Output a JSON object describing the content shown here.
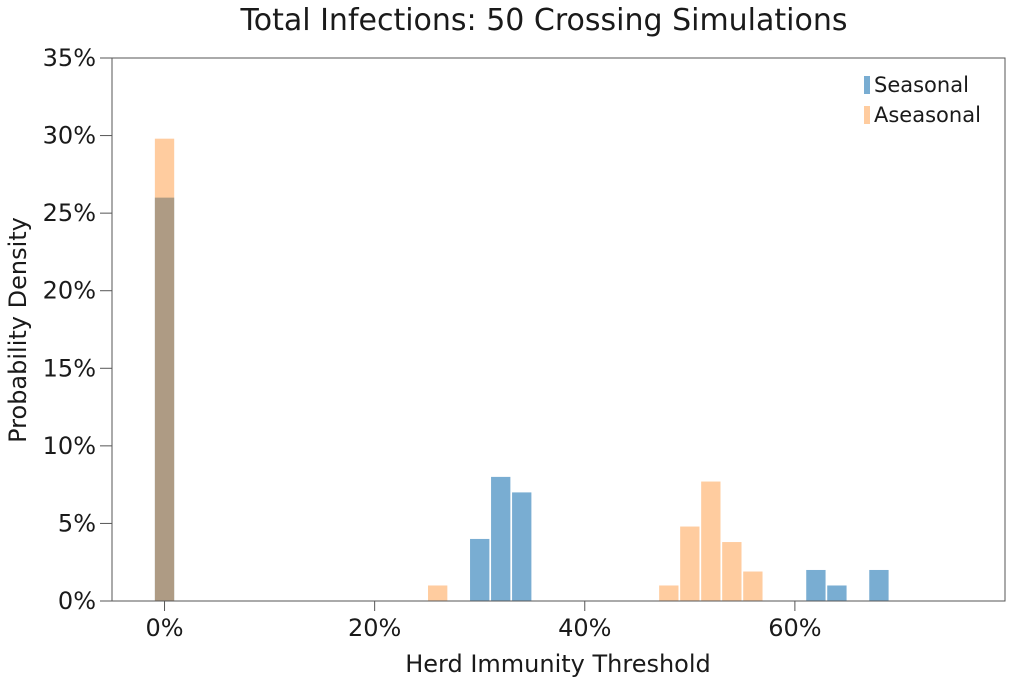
{
  "chart_data": {
    "type": "bar",
    "title": "Total Infections: 50 Crossing Simulations",
    "xlabel": "Herd Immunity Threshold",
    "ylabel": "Probability Density",
    "xlim": [
      -5,
      80
    ],
    "ylim": [
      0,
      35
    ],
    "x_ticks": [
      0,
      20,
      40,
      60
    ],
    "x_tick_labels": [
      "0%",
      "20%",
      "40%",
      "60%"
    ],
    "y_ticks": [
      0,
      5,
      10,
      15,
      20,
      25,
      30,
      35
    ],
    "y_tick_labels": [
      "0%",
      "5%",
      "10%",
      "15%",
      "20%",
      "25%",
      "30%",
      "35%"
    ],
    "bin_width": 2,
    "grid": false,
    "legend_position": "top-right",
    "series": [
      {
        "name": "Seasonal",
        "color": "#1f77b4",
        "opacity": 0.6,
        "bins": [
          {
            "x": 0,
            "value": 26
          },
          {
            "x": 30,
            "value": 4
          },
          {
            "x": 32,
            "value": 8
          },
          {
            "x": 34,
            "value": 7
          },
          {
            "x": 62,
            "value": 2
          },
          {
            "x": 64,
            "value": 1
          },
          {
            "x": 68,
            "value": 2
          }
        ]
      },
      {
        "name": "Aseasonal",
        "color": "#ff7f0e",
        "opacity": 0.4,
        "bins": [
          {
            "x": 0,
            "value": 29.8
          },
          {
            "x": 26,
            "value": 1
          },
          {
            "x": 48,
            "value": 1
          },
          {
            "x": 50,
            "value": 4.8
          },
          {
            "x": 52,
            "value": 7.7
          },
          {
            "x": 54,
            "value": 3.8
          },
          {
            "x": 56,
            "value": 1.9
          }
        ]
      }
    ]
  }
}
